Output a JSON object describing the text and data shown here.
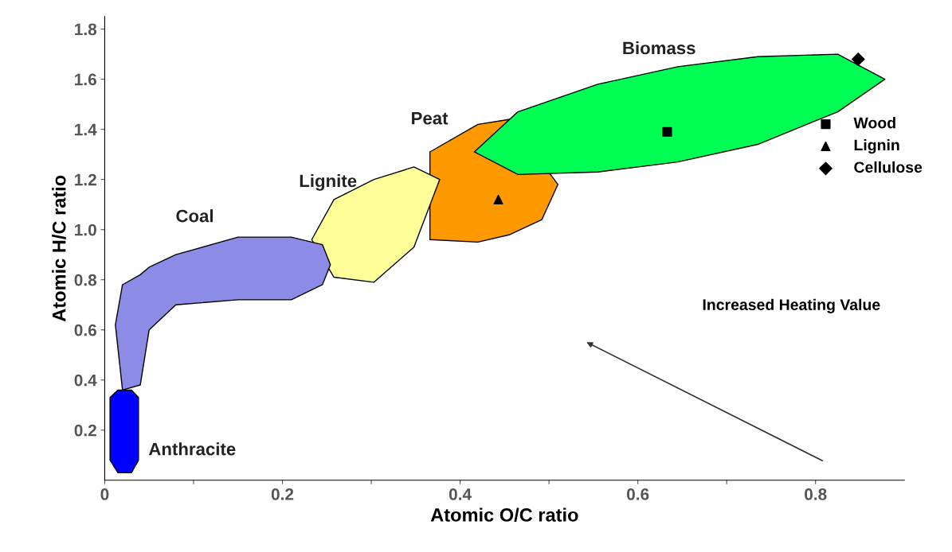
{
  "chart_data": {
    "type": "scatter",
    "xlabel": "Atomic O/C ratio",
    "ylabel": "Atomic H/C ratio",
    "xlim": [
      0,
      0.9
    ],
    "ylim": [
      0,
      1.85
    ],
    "xticks": [
      {
        "value": 0,
        "label": "0"
      },
      {
        "value": 0.1,
        "label": null
      },
      0.2,
      {
        "value": 0.3,
        "label": null
      },
      0.4,
      {
        "value": 0.5,
        "label": null
      },
      0.6,
      {
        "value": 0.7,
        "label": null
      },
      0.8
    ],
    "yticks": [
      0.2,
      0.4,
      0.6,
      0.8,
      {
        "value": 1.0,
        "label": "1.0"
      },
      1.2,
      1.4,
      1.6,
      1.8
    ],
    "grid": false,
    "legend": "right",
    "series": [
      {
        "type": "area",
        "name": "Peat",
        "color": "#ff9900",
        "x": [
          0.366,
          0.42,
          0.456,
          0.51,
          0.492,
          0.456,
          0.42,
          0.366
        ],
        "values": [
          1.31,
          1.42,
          1.44,
          1.18,
          1.04,
          0.98,
          0.95,
          0.96
        ]
      },
      {
        "type": "area",
        "name": "Biomass",
        "color": "#00ff55",
        "x": [
          0.416,
          0.465,
          0.555,
          0.645,
          0.735,
          0.825,
          0.878,
          0.825,
          0.735,
          0.645,
          0.555,
          0.465
        ],
        "values": [
          1.31,
          1.47,
          1.58,
          1.65,
          1.69,
          1.7,
          1.6,
          1.47,
          1.34,
          1.27,
          1.23,
          1.22
        ]
      },
      {
        "type": "area",
        "name": "Lignite",
        "color": "#ffff99",
        "x": [
          0.233,
          0.258,
          0.303,
          0.348,
          0.377,
          0.348,
          0.303,
          0.258
        ],
        "values": [
          0.96,
          1.12,
          1.2,
          1.25,
          1.2,
          0.93,
          0.79,
          0.81
        ]
      },
      {
        "type": "area",
        "name": "Coal",
        "color": "#8c8ce6",
        "x": [
          0.012,
          0.02,
          0.04,
          0.05,
          0.08,
          0.15,
          0.21,
          0.245,
          0.254,
          0.245,
          0.21,
          0.15,
          0.08,
          0.05,
          0.04,
          0.02
        ],
        "values": [
          0.62,
          0.78,
          0.82,
          0.85,
          0.9,
          0.97,
          0.97,
          0.94,
          0.86,
          0.78,
          0.72,
          0.72,
          0.7,
          0.6,
          0.38,
          0.36
        ]
      },
      {
        "type": "area",
        "name": "Anthracite",
        "color": "#0000ff",
        "x": [
          0.006,
          0.015,
          0.03,
          0.038,
          0.038,
          0.03,
          0.015,
          0.006
        ],
        "values": [
          0.33,
          0.36,
          0.36,
          0.33,
          0.08,
          0.03,
          0.03,
          0.08
        ]
      },
      {
        "name": "Wood",
        "color": "#000000",
        "marker": "square",
        "x": [
          0.633
        ],
        "values": [
          1.39
        ]
      },
      {
        "name": "Lignin",
        "color": "#000000",
        "marker": "triangle",
        "x": [
          0.443
        ],
        "values": [
          1.12
        ]
      },
      {
        "name": "Cellulose",
        "color": "#000000",
        "marker": "diamond",
        "x": [
          0.848
        ],
        "values": [
          1.68
        ]
      }
    ],
    "annotations": [
      "Increased Heating Value"
    ]
  }
}
